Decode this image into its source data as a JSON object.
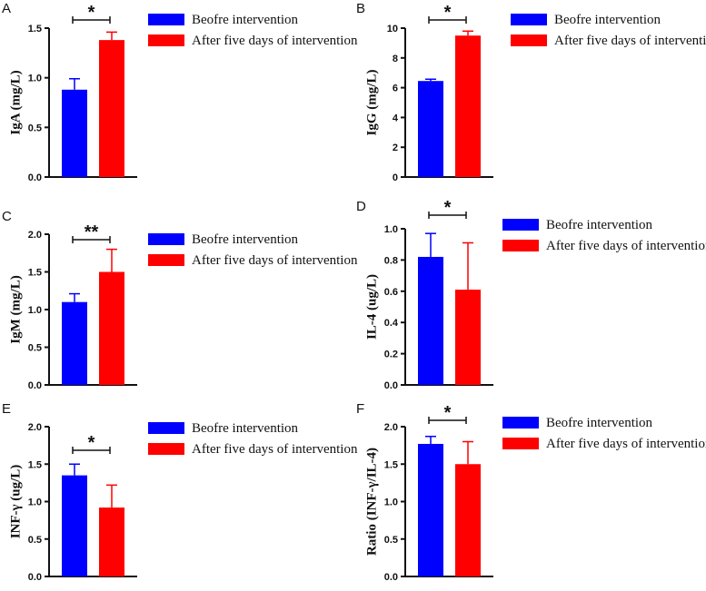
{
  "colors": {
    "before": "#0000ff",
    "after": "#ff0000"
  },
  "legend": [
    "Beofre intervention",
    "After five days of intervention"
  ],
  "chart_data": [
    {
      "panel": "A",
      "type": "bar",
      "ylabel": "IgA (mg/L)",
      "ylim": [
        0,
        1.5
      ],
      "yticks": [
        0.0,
        0.5,
        1.0,
        1.5
      ],
      "decimals": 1,
      "categories": [
        "Beofre intervention",
        "After five days of intervention"
      ],
      "values": [
        0.88,
        1.38
      ],
      "errors": [
        0.11,
        0.08
      ],
      "significance": "*"
    },
    {
      "panel": "B",
      "type": "bar",
      "ylabel": "IgG (mg/L)",
      "ylim": [
        0,
        10
      ],
      "yticks": [
        0,
        2,
        4,
        6,
        8,
        10
      ],
      "decimals": 0,
      "categories": [
        "Beofre intervention",
        "After five days of intervention"
      ],
      "values": [
        6.45,
        9.5
      ],
      "errors": [
        0.12,
        0.3
      ],
      "significance": "*"
    },
    {
      "panel": "C",
      "type": "bar",
      "ylabel": "IgM (mg/L)",
      "ylim": [
        0,
        2
      ],
      "yticks": [
        0.0,
        0.5,
        1.0,
        1.5,
        2.0
      ],
      "decimals": 1,
      "categories": [
        "Beofre intervention",
        "After five days of intervention"
      ],
      "values": [
        1.1,
        1.5
      ],
      "errors": [
        0.11,
        0.3
      ],
      "significance": "**"
    },
    {
      "panel": "D",
      "type": "bar",
      "ylabel": "IL-4 (ug/L)",
      "ylim": [
        0,
        1
      ],
      "yticks": [
        0.0,
        0.2,
        0.4,
        0.6,
        0.8,
        1.0
      ],
      "decimals": 1,
      "categories": [
        "Beofre intervention",
        "After five days of intervention"
      ],
      "values": [
        0.82,
        0.61
      ],
      "errors": [
        0.15,
        0.3
      ],
      "significance": "*"
    },
    {
      "panel": "E",
      "type": "bar",
      "ylabel": "INF-γ (ug/L)",
      "ylim": [
        0,
        2
      ],
      "yticks": [
        0.0,
        0.5,
        1.0,
        1.5,
        2.0
      ],
      "decimals": 1,
      "categories": [
        "Beofre intervention",
        "After five days of intervention"
      ],
      "values": [
        1.35,
        0.92
      ],
      "errors": [
        0.15,
        0.3
      ],
      "significance": "*"
    },
    {
      "panel": "F",
      "type": "bar",
      "ylabel": "Ratio (INF-γ/IL-4)",
      "ylim": [
        0,
        2
      ],
      "yticks": [
        0.0,
        0.5,
        1.0,
        1.5,
        2.0
      ],
      "decimals": 1,
      "categories": [
        "Beofre intervention",
        "After five days of intervention"
      ],
      "values": [
        1.77,
        1.5
      ],
      "errors": [
        0.1,
        0.3
      ],
      "significance": "*"
    }
  ]
}
